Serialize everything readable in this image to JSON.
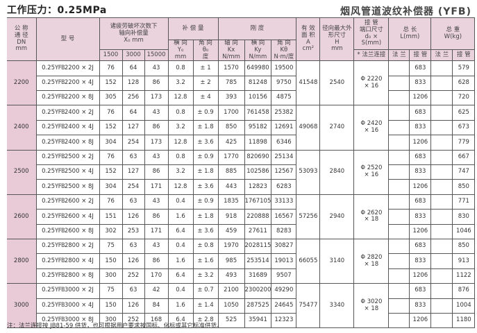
{
  "pressure_label": "工作压力：0.25MPa",
  "title": "烟风管道波纹补偿器 (YFB)",
  "header": {
    "dn": [
      "公 称",
      "通 径",
      "DN",
      "mm"
    ],
    "model": "型  号",
    "axial_comp": [
      "诸疲劳破坏次数下",
      "轴向补偿量",
      "X₀    mm"
    ],
    "cycles": [
      "1500",
      "3000",
      "15000"
    ],
    "compensation": "补 偿 量",
    "lateral": [
      "横 向",
      "Y₀",
      "mm"
    ],
    "angular": [
      "角 向",
      "θ₀",
      "度"
    ],
    "stiffness": "刚 度",
    "kx": [
      "轴 向",
      "Kx",
      "N/mm"
    ],
    "ky": [
      "横 向",
      "Ky",
      "N/mm"
    ],
    "ktheta": [
      "角 向",
      "Kθ",
      "N·m/度"
    ],
    "area": [
      "有 效",
      "面 积",
      "A",
      "cm²"
    ],
    "outer": [
      "径向最大外",
      "形尺寸",
      "H",
      "mm"
    ],
    "pipe": [
      "接 管",
      "端口尺寸",
      "d₀ × S(mm)"
    ],
    "flange_conn": "* 法兰连接",
    "length": [
      "总 长",
      "L(mm)"
    ],
    "weight": [
      "总 重",
      "W(kg)"
    ],
    "flange": "法 兰",
    "pipe_end": "接 管"
  },
  "groups": [
    {
      "dn": "2200",
      "area": "41548",
      "h": "2540",
      "pipe": "Φ 2220 × 16",
      "rows": [
        {
          "prefix": "0.25",
          "yfb": "YFB",
          "suffix": "2200 × 2J",
          "x1500": "76",
          "x3000": "64",
          "x15000": "43",
          "y0": "0.8",
          "theta": "± 1",
          "kx": "1570",
          "ky": "649980",
          "kt": "19500",
          "L": "683",
          "W": "579"
        },
        {
          "prefix": "0.25",
          "yfb": "YFB",
          "suffix": "2200 × 4J",
          "x1500": "152",
          "x3000": "128",
          "x15000": "86",
          "y0": "3.2",
          "theta": "± 2",
          "kx": "785",
          "ky": "81248",
          "kt": "9750",
          "L": "833",
          "W": "628"
        },
        {
          "prefix": "0.25",
          "yfb": "YFB",
          "suffix": "2200 × 8J",
          "x1500": "305",
          "x3000": "256",
          "x15000": "173",
          "y0": "12.8",
          "theta": "± 4",
          "kx": "393",
          "ky": "10156",
          "kt": "4875",
          "L": "1206",
          "W": "720"
        }
      ]
    },
    {
      "dn": "2400",
      "area": "49068",
      "h": "2740",
      "pipe": "Φ 2420 × 16",
      "rows": [
        {
          "prefix": "0.25",
          "yfb": "YFB",
          "suffix": "2400 × 2J",
          "x1500": "76",
          "x3000": "64",
          "x15000": "43",
          "y0": "0.8",
          "theta": "± 0.9",
          "kx": "1700",
          "ky": "761458",
          "kt": "25382",
          "L": "683",
          "W": "625"
        },
        {
          "prefix": "0.25",
          "yfb": "YFB",
          "suffix": "2400 × 4J",
          "x1500": "152",
          "x3000": "127",
          "x15000": "86",
          "y0": "3.2",
          "theta": "± 1.8",
          "kx": "850",
          "ky": "95182",
          "kt": "12691",
          "L": "833",
          "W": "673"
        },
        {
          "prefix": "0.25",
          "yfb": "YFB",
          "suffix": "2400 × 8J",
          "x1500": "304",
          "x3000": "254",
          "x15000": "173",
          "y0": "12.8",
          "theta": "± 3.6",
          "kx": "425",
          "ky": "11898",
          "kt": "6346",
          "L": "1206",
          "W": "779"
        }
      ]
    },
    {
      "dn": "2500",
      "area": "53093",
      "h": "2840",
      "pipe": "Φ 2520 × 16",
      "rows": [
        {
          "prefix": "0.25",
          "yfb": "YFB",
          "suffix": "2500 × 2J",
          "x1500": "76",
          "x3000": "63",
          "x15000": "43",
          "y0": "0.8",
          "theta": "± 0.9",
          "kx": "1770",
          "ky": "820690",
          "kt": "25134",
          "L": "683",
          "W": "667"
        },
        {
          "prefix": "0.25",
          "yfb": "YFB",
          "suffix": "2500 × 4J",
          "x1500": "152",
          "x3000": "127",
          "x15000": "86",
          "y0": "3.2",
          "theta": "± 1.8",
          "kx": "885",
          "ky": "102586",
          "kt": "12567",
          "L": "833",
          "W": "747"
        },
        {
          "prefix": "0.25",
          "yfb": "YFB",
          "suffix": "2500 × 8J",
          "x1500": "304",
          "x3000": "254",
          "x15000": "171",
          "y0": "12.8",
          "theta": "± 3.6",
          "kx": "443",
          "ky": "12823",
          "kt": "6283",
          "L": "1206",
          "W": "850"
        }
      ]
    },
    {
      "dn": "2600",
      "area": "57256",
      "h": "2940",
      "pipe": "Φ 2620 × 18",
      "rows": [
        {
          "prefix": "0.25",
          "yfb": "YFB",
          "suffix": "2600 × 2J",
          "x1500": "76",
          "x3000": "63",
          "x15000": "43",
          "y0": "0.4",
          "theta": "± 0.9",
          "kx": "1835",
          "ky": "1767105",
          "kt": "33133",
          "L": "683",
          "W": "771"
        },
        {
          "prefix": "0.25",
          "yfb": "YFB",
          "suffix": "2600 × 4J",
          "x1500": "151",
          "x3000": "126",
          "x15000": "86",
          "y0": "1.6",
          "theta": "± 1.8",
          "kx": "918",
          "ky": "220888",
          "kt": "16567",
          "L": "833",
          "W": "830"
        },
        {
          "prefix": "0.25",
          "yfb": "YFB",
          "suffix": "2600 × 8J",
          "x1500": "302",
          "x3000": "253",
          "x15000": "171",
          "y0": "6.4",
          "theta": "± 3.6",
          "kx": "459",
          "ky": "27611",
          "kt": "8283",
          "L": "1206",
          "W": "1046"
        }
      ]
    },
    {
      "dn": "2800",
      "area": "66055",
      "h": "3140",
      "pipe": "Φ 2820 × 18",
      "rows": [
        {
          "prefix": "0.25",
          "yfb": "YFB",
          "suffix": "2800 × 2J",
          "x1500": "75",
          "x3000": "63",
          "x15000": "43",
          "y0": "0.4",
          "theta": "± 0.8",
          "kx": "1970",
          "ky": "2028115",
          "kt": "30827",
          "L": "683",
          "W": "850"
        },
        {
          "prefix": "0.25",
          "yfb": "YFB",
          "suffix": "2800 × 4J",
          "x1500": "150",
          "x3000": "126",
          "x15000": "86",
          "y0": "1.6",
          "theta": "± 1.6",
          "kx": "985",
          "ky": "253514",
          "kt": "19013",
          "L": "833",
          "W": "913"
        },
        {
          "prefix": "0.25",
          "yfb": "YFB",
          "suffix": "2800 × 8J",
          "x1500": "300",
          "x3000": "252",
          "x15000": "170",
          "y0": "6.4",
          "theta": "± 3.2",
          "kx": "493",
          "ky": "31689",
          "kt": "9507",
          "L": "1206",
          "W": "1122"
        }
      ]
    },
    {
      "dn": "3000",
      "area": "75477",
      "h": "3340",
      "pipe": "Φ 3020 × 18",
      "rows": [
        {
          "prefix": "0.25",
          "yfb": "YFB",
          "suffix": "3000 × 2J",
          "x1500": "75",
          "x3000": "63",
          "x15000": "42",
          "y0": "0.4",
          "theta": "± 0.7",
          "kx": "2100",
          "ky": "2300200",
          "kt": "49290",
          "L": "683",
          "W": "876"
        },
        {
          "prefix": "0.25",
          "yfb": "YFB",
          "suffix": "3000 × 4J",
          "x1500": "150",
          "x3000": "126",
          "x15000": "84",
          "y0": "1.6",
          "theta": "± 1.4",
          "kx": "1050",
          "ky": "287525",
          "kt": "24645",
          "L": "833",
          "W": "1004"
        },
        {
          "prefix": "0.25",
          "yfb": "YFB",
          "suffix": "3000 × 8J",
          "x1500": "300",
          "x3000": "252",
          "x15000": "168",
          "y0": "6.4",
          "theta": "± 2.8",
          "kx": "525",
          "ky": "35941",
          "kt": "12323",
          "L": "1206",
          "W": "1180"
        }
      ]
    }
  ],
  "note": "注：法兰连接按 JB81-59 供货，也可根据用户要求按国标、化标或其它标准供货。"
}
